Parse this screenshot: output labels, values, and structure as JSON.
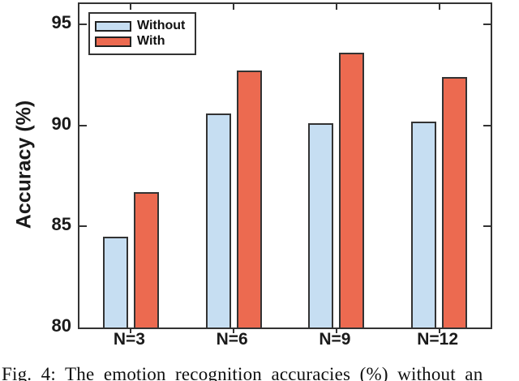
{
  "figure": {
    "ylabel": "Accuracy (%)",
    "caption": "Fig. 4: The emotion recognition accuracies (%) without an"
  },
  "chart_data": {
    "type": "bar",
    "title": "",
    "categories": [
      "N=3",
      "N=6",
      "N=9",
      "N=12"
    ],
    "series": [
      {
        "name": "Without",
        "color": "#c6def2",
        "values": [
          84.5,
          90.6,
          90.1,
          90.2
        ]
      },
      {
        "name": "With",
        "color": "#ec6a50",
        "values": [
          86.7,
          92.7,
          93.6,
          92.4
        ]
      }
    ],
    "xlabel": "",
    "ylabel": "Accuracy (%)",
    "ylim": [
      80,
      96
    ],
    "yticks": [
      80,
      85,
      90,
      95
    ],
    "grid": false,
    "legend_position": "top-left",
    "bar_edge_color": "#333333",
    "axis_color": "#333333"
  }
}
